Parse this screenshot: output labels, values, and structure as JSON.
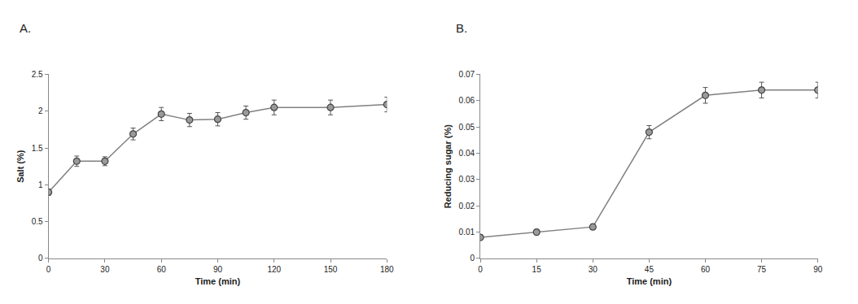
{
  "chart_data": [
    {
      "type": "line",
      "title": "A.",
      "x": [
        0,
        15,
        30,
        45,
        60,
        75,
        90,
        105,
        120,
        150,
        180
      ],
      "values": [
        0.9,
        1.32,
        1.32,
        1.69,
        1.96,
        1.88,
        1.89,
        1.98,
        2.05,
        2.05,
        2.09
      ],
      "errors": [
        0.04,
        0.07,
        0.06,
        0.08,
        0.09,
        0.09,
        0.09,
        0.09,
        0.1,
        0.1,
        0.1
      ],
      "x_label": "Time (min)",
      "y_label": "Salt (%)",
      "xlim": [
        0,
        180
      ],
      "xticks": [
        0,
        30,
        60,
        90,
        120,
        150,
        180
      ],
      "ylim": [
        0,
        2.5
      ],
      "yticks": [
        0,
        0.5,
        1,
        1.5,
        2,
        2.5
      ],
      "color": "#808080",
      "marker": "circle",
      "grid": false
    },
    {
      "type": "line",
      "title": "B.",
      "x": [
        0,
        15,
        30,
        45,
        60,
        75,
        90
      ],
      "values": [
        0.008,
        0.01,
        0.012,
        0.048,
        0.062,
        0.064,
        0.064
      ],
      "errors": [
        0.001,
        0.001,
        0.001,
        0.0025,
        0.003,
        0.003,
        0.003
      ],
      "x_label": "Time (min)",
      "y_label": "Reducing sugar (%)",
      "xlim": [
        0,
        90
      ],
      "xticks": [
        0,
        15,
        30,
        45,
        60,
        75,
        90
      ],
      "ylim": [
        0,
        0.07
      ],
      "yticks": [
        0,
        0.01,
        0.02,
        0.03,
        0.04,
        0.05,
        0.06,
        0.07
      ],
      "color": "#808080",
      "marker": "circle",
      "grid": false
    }
  ]
}
